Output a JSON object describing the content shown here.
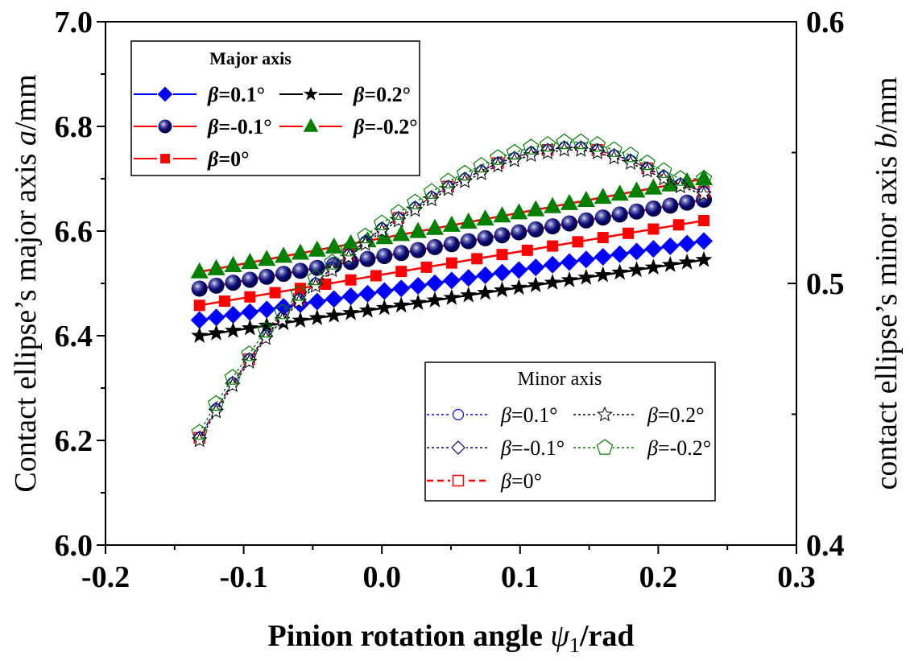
{
  "chart_data": {
    "type": "line",
    "title": "",
    "xlabel": "Pinion rotation angle ψ1/rad",
    "xlabel_parts": {
      "prefix": "Pinion rotation angle ",
      "symbol": "ψ",
      "subscript": "1",
      "suffix": "/rad"
    },
    "ylabel_left": "Contact ellipse’s major axis a/mm",
    "ylabel_left_parts": {
      "prefix": "Contact ellipse’s major axis ",
      "symbol": "a",
      "suffix": "/mm"
    },
    "ylabel_right": "contact ellipse’s minor axis b/mm",
    "ylabel_right_parts": {
      "prefix": "contact ellipse’s minor axis ",
      "symbol": "b",
      "suffix": "/mm"
    },
    "xlim": [
      -0.2,
      0.3
    ],
    "ylim_left": [
      6.0,
      7.0
    ],
    "ylim_right": [
      0.4,
      0.6
    ],
    "x_ticks": [
      "-0.2",
      "-0.1",
      "0.0",
      "0.1",
      "0.2",
      "0.3"
    ],
    "x_tick_values": [
      -0.2,
      -0.1,
      0.0,
      0.1,
      0.2,
      0.3
    ],
    "y_left_ticks": [
      "6.0",
      "6.2",
      "6.4",
      "6.6",
      "6.8",
      "7.0"
    ],
    "y_left_tick_values": [
      6.0,
      6.2,
      6.4,
      6.6,
      6.8,
      7.0
    ],
    "y_right_ticks": [
      "0.4",
      "0.5",
      "0.6"
    ],
    "y_right_tick_values": [
      0.4,
      0.5,
      0.6
    ],
    "grid": false,
    "x_range_data": [
      -0.132,
      0.233
    ],
    "legends": [
      {
        "title": "Major axis",
        "placement": "top-left",
        "entries": [
          {
            "label": "β=0.1°",
            "series": "major_p01"
          },
          {
            "label": "β=0.2°",
            "series": "major_p02"
          },
          {
            "label": "β=-0.1°",
            "series": "major_m01"
          },
          {
            "label": "β=-0.2°",
            "series": "major_m02"
          },
          {
            "label": "β=0°",
            "series": "major_0"
          }
        ]
      },
      {
        "title": "Minor axis",
        "placement": "bottom-right",
        "entries": [
          {
            "label": "β=0.1°",
            "series": "minor_p01"
          },
          {
            "label": "β=0.2°",
            "series": "minor_p02"
          },
          {
            "label": "β=-0.1°",
            "series": "minor_m01"
          },
          {
            "label": "β=-0.2°",
            "series": "minor_m02"
          },
          {
            "label": "β=0°",
            "series": "minor_0"
          }
        ]
      }
    ],
    "series": [
      {
        "id": "major_p01",
        "name": "Major axis β=0.1°",
        "axis": "left",
        "marker": "diamond",
        "color": "#0000ff",
        "line_color": "#0000ff",
        "line_style": "solid",
        "filled": true,
        "x_start": -0.132,
        "x_end": 0.233,
        "points": 31,
        "y_start": 6.43,
        "y_end": 6.581
      },
      {
        "id": "major_p02",
        "name": "Major axis β=0.2°",
        "axis": "left",
        "marker": "star",
        "color": "#000000",
        "line_color": "#000000",
        "line_style": "solid",
        "filled": true,
        "x_start": -0.132,
        "x_end": 0.233,
        "points": 31,
        "y_start": 6.4,
        "y_end": 6.545
      },
      {
        "id": "major_m01",
        "name": "Major axis β=-0.1°",
        "axis": "left",
        "marker": "sphere",
        "color": "#000080",
        "line_color": "#ff0000",
        "line_style": "solid",
        "filled": true,
        "x_start": -0.132,
        "x_end": 0.233,
        "points": 31,
        "y_start": 6.49,
        "y_end": 6.66
      },
      {
        "id": "major_m02",
        "name": "Major axis β=-0.2°",
        "axis": "left",
        "marker": "triangle",
        "color": "#008000",
        "line_color": "#ff0000",
        "line_style": "solid",
        "filled": true,
        "x_start": -0.132,
        "x_end": 0.233,
        "points": 31,
        "y_start": 6.522,
        "y_end": 6.7
      },
      {
        "id": "major_0",
        "name": "Major axis β=0°",
        "axis": "left",
        "marker": "square",
        "color": "#ff0000",
        "line_color": "#ff0000",
        "line_style": "solid",
        "filled": true,
        "x_start": -0.132,
        "x_end": 0.233,
        "points": 21,
        "y_start": 6.458,
        "y_end": 6.62
      },
      {
        "id": "minor_p01",
        "name": "Minor axis β=0.1°",
        "axis": "right",
        "marker": "circle",
        "color": "#0000ff",
        "line_color": "#0000ff",
        "line_style": "dashed",
        "filled": false,
        "x": [
          -0.132,
          -0.12,
          -0.108,
          -0.096,
          -0.084,
          -0.072,
          -0.06,
          -0.048,
          -0.036,
          -0.024,
          -0.012,
          0.0,
          0.012,
          0.024,
          0.036,
          0.048,
          0.06,
          0.072,
          0.084,
          0.096,
          0.108,
          0.12,
          0.132,
          0.144,
          0.156,
          0.168,
          0.18,
          0.192,
          0.204,
          0.216,
          0.233
        ],
        "y": [
          0.441,
          0.452,
          0.462,
          0.471,
          0.48,
          0.487,
          0.494,
          0.5,
          0.506,
          0.511,
          0.516,
          0.521,
          0.525,
          0.529,
          0.533,
          0.537,
          0.54,
          0.543,
          0.546,
          0.548,
          0.55,
          0.551,
          0.552,
          0.552,
          0.551,
          0.549,
          0.547,
          0.544,
          0.541,
          0.538,
          0.535
        ]
      },
      {
        "id": "minor_p02",
        "name": "Minor axis β=0.2°",
        "axis": "right",
        "marker": "star-open",
        "color": "#000000",
        "line_color": "#000000",
        "line_style": "dashed",
        "filled": false,
        "x": [
          -0.132,
          -0.12,
          -0.108,
          -0.096,
          -0.084,
          -0.072,
          -0.06,
          -0.048,
          -0.036,
          -0.024,
          -0.012,
          0.0,
          0.012,
          0.024,
          0.036,
          0.048,
          0.06,
          0.072,
          0.084,
          0.096,
          0.108,
          0.12,
          0.132,
          0.144,
          0.156,
          0.168,
          0.18,
          0.192,
          0.204,
          0.216,
          0.233
        ],
        "y": [
          0.44,
          0.451,
          0.461,
          0.47,
          0.479,
          0.486,
          0.493,
          0.499,
          0.505,
          0.51,
          0.515,
          0.52,
          0.524,
          0.528,
          0.532,
          0.536,
          0.539,
          0.542,
          0.545,
          0.547,
          0.549,
          0.55,
          0.551,
          0.551,
          0.55,
          0.548,
          0.546,
          0.543,
          0.54,
          0.537,
          0.534
        ]
      },
      {
        "id": "minor_m01",
        "name": "Minor axis β=-0.1°",
        "axis": "right",
        "marker": "diamond-open",
        "color": "#000080",
        "line_color": "#000080",
        "line_style": "dashed",
        "filled": false,
        "x": [
          -0.132,
          -0.12,
          -0.108,
          -0.096,
          -0.084,
          -0.072,
          -0.06,
          -0.048,
          -0.036,
          -0.024,
          -0.012,
          0.0,
          0.012,
          0.024,
          0.036,
          0.048,
          0.06,
          0.072,
          0.084,
          0.096,
          0.108,
          0.12,
          0.132,
          0.144,
          0.156,
          0.168,
          0.18,
          0.192,
          0.204,
          0.216,
          0.233
        ],
        "y": [
          0.441,
          0.452,
          0.462,
          0.471,
          0.48,
          0.487,
          0.494,
          0.5,
          0.506,
          0.511,
          0.516,
          0.521,
          0.525,
          0.529,
          0.533,
          0.537,
          0.54,
          0.543,
          0.546,
          0.548,
          0.55,
          0.551,
          0.552,
          0.552,
          0.551,
          0.549,
          0.547,
          0.544,
          0.541,
          0.538,
          0.535
        ]
      },
      {
        "id": "minor_m02",
        "name": "Minor axis β=-0.2°",
        "axis": "right",
        "marker": "pentagon-open",
        "color": "#008000",
        "line_color": "#008000",
        "line_style": "dashed",
        "filled": false,
        "x": [
          -0.132,
          -0.12,
          -0.108,
          -0.096,
          -0.084,
          -0.072,
          -0.06,
          -0.048,
          -0.036,
          -0.024,
          -0.012,
          0.0,
          0.012,
          0.024,
          0.036,
          0.048,
          0.06,
          0.072,
          0.084,
          0.096,
          0.108,
          0.12,
          0.132,
          0.144,
          0.156,
          0.168,
          0.18,
          0.192,
          0.204,
          0.216,
          0.233
        ],
        "y": [
          0.443,
          0.454,
          0.464,
          0.473,
          0.482,
          0.489,
          0.496,
          0.502,
          0.508,
          0.513,
          0.518,
          0.523,
          0.527,
          0.531,
          0.535,
          0.539,
          0.542,
          0.545,
          0.548,
          0.55,
          0.552,
          0.553,
          0.554,
          0.554,
          0.553,
          0.551,
          0.549,
          0.546,
          0.543,
          0.54,
          0.54
        ]
      },
      {
        "id": "minor_0",
        "name": "Minor axis β=0°",
        "axis": "right",
        "marker": "square-open",
        "color": "#ff0000",
        "line_color": "#ff0000",
        "line_style": "dashed",
        "filled": false,
        "x": [
          -0.132,
          -0.12,
          -0.108,
          -0.096,
          -0.084,
          -0.072,
          -0.06,
          -0.048,
          -0.036,
          -0.024,
          -0.012,
          0.0,
          0.012,
          0.024,
          0.036,
          0.048,
          0.06,
          0.072,
          0.084,
          0.096,
          0.108,
          0.12,
          0.132,
          0.144,
          0.156,
          0.168,
          0.18,
          0.192,
          0.204,
          0.216,
          0.233
        ],
        "y": [
          0.441,
          0.452,
          0.462,
          0.471,
          0.48,
          0.487,
          0.494,
          0.5,
          0.506,
          0.511,
          0.516,
          0.521,
          0.525,
          0.529,
          0.533,
          0.537,
          0.54,
          0.543,
          0.546,
          0.548,
          0.55,
          0.551,
          0.552,
          0.552,
          0.551,
          0.549,
          0.547,
          0.544,
          0.541,
          0.538,
          0.535
        ],
        "marker_every": 3
      }
    ]
  }
}
